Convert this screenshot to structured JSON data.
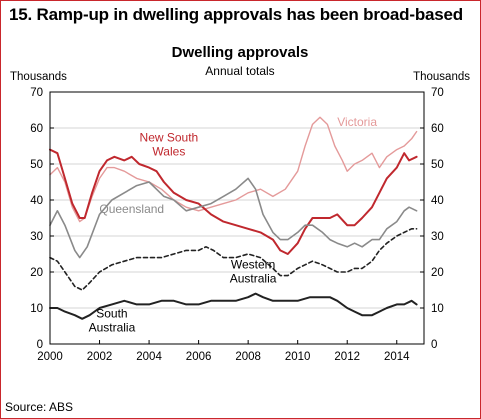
{
  "header": {
    "title": "15. Ramp-up in dwelling approvals has been broad-based"
  },
  "footer": {
    "source": "Source: ABS"
  },
  "chart_data": {
    "type": "line",
    "title": "Dwelling approvals",
    "subtitle": "Annual totals",
    "ylabel_left": "Thousands",
    "ylabel_right": "Thousands",
    "xlim": [
      2000,
      2015.1
    ],
    "ylim": [
      0,
      70
    ],
    "xticks": [
      "2000",
      "2002",
      "2004",
      "2006",
      "2008",
      "2010",
      "2012",
      "2014"
    ],
    "xtick_values": [
      2000,
      2002,
      2004,
      2006,
      2008,
      2010,
      2012,
      2014
    ],
    "yticks": [
      "0",
      "10",
      "20",
      "30",
      "40",
      "50",
      "60",
      "70"
    ],
    "ytick_values": [
      0,
      10,
      20,
      30,
      40,
      50,
      60,
      70
    ],
    "grid": true,
    "series": [
      {
        "name": "Victoria",
        "color": "#e49a9a",
        "dash": "none",
        "width": 1.4,
        "points": [
          [
            2000,
            47
          ],
          [
            2000.3,
            49
          ],
          [
            2000.6,
            45
          ],
          [
            2000.9,
            38
          ],
          [
            2001.2,
            34
          ],
          [
            2001.4,
            35
          ],
          [
            2001.7,
            41
          ],
          [
            2002,
            46
          ],
          [
            2002.3,
            49
          ],
          [
            2002.6,
            49
          ],
          [
            2003,
            48
          ],
          [
            2003.5,
            46
          ],
          [
            2004,
            45
          ],
          [
            2004.5,
            43
          ],
          [
            2005,
            40
          ],
          [
            2005.5,
            38
          ],
          [
            2006,
            37
          ],
          [
            2006.5,
            38
          ],
          [
            2007,
            39
          ],
          [
            2007.5,
            40
          ],
          [
            2008,
            42
          ],
          [
            2008.5,
            43
          ],
          [
            2009,
            41
          ],
          [
            2009.5,
            43
          ],
          [
            2010,
            48
          ],
          [
            2010.3,
            55
          ],
          [
            2010.6,
            61
          ],
          [
            2010.9,
            63
          ],
          [
            2011.2,
            61
          ],
          [
            2011.5,
            55
          ],
          [
            2011.8,
            51
          ],
          [
            2012,
            48
          ],
          [
            2012.3,
            50
          ],
          [
            2012.6,
            51
          ],
          [
            2013,
            53
          ],
          [
            2013.3,
            49
          ],
          [
            2013.6,
            52
          ],
          [
            2014,
            54
          ],
          [
            2014.3,
            55
          ],
          [
            2014.6,
            57
          ],
          [
            2014.8,
            59
          ]
        ],
        "label": {
          "text": "Victoria",
          "x": 2012.4,
          "y": 60.5
        }
      },
      {
        "name": "New South Wales",
        "color": "#c0282e",
        "dash": "none",
        "width": 2,
        "points": [
          [
            2000,
            54
          ],
          [
            2000.3,
            53
          ],
          [
            2000.6,
            46
          ],
          [
            2000.9,
            39
          ],
          [
            2001.2,
            35
          ],
          [
            2001.4,
            35
          ],
          [
            2001.7,
            42
          ],
          [
            2002,
            48
          ],
          [
            2002.3,
            51
          ],
          [
            2002.6,
            52
          ],
          [
            2003,
            51
          ],
          [
            2003.3,
            52
          ],
          [
            2003.6,
            50
          ],
          [
            2004,
            49
          ],
          [
            2004.3,
            48
          ],
          [
            2004.6,
            45
          ],
          [
            2005,
            42
          ],
          [
            2005.5,
            40
          ],
          [
            2006,
            39
          ],
          [
            2006.5,
            36
          ],
          [
            2007,
            34
          ],
          [
            2007.5,
            33
          ],
          [
            2008,
            32
          ],
          [
            2008.5,
            31
          ],
          [
            2009,
            29
          ],
          [
            2009.3,
            26
          ],
          [
            2009.6,
            25
          ],
          [
            2010,
            28
          ],
          [
            2010.3,
            32
          ],
          [
            2010.6,
            35
          ],
          [
            2011,
            35
          ],
          [
            2011.3,
            35
          ],
          [
            2011.6,
            36
          ],
          [
            2012,
            33
          ],
          [
            2012.3,
            33
          ],
          [
            2012.6,
            35
          ],
          [
            2013,
            38
          ],
          [
            2013.3,
            42
          ],
          [
            2013.6,
            46
          ],
          [
            2014,
            49
          ],
          [
            2014.3,
            53
          ],
          [
            2014.5,
            51
          ],
          [
            2014.8,
            52
          ]
        ],
        "label": {
          "text": "New South\nWales",
          "x": 2004.8,
          "y": 56.2
        }
      },
      {
        "name": "Queensland",
        "color": "#8a8a8a",
        "dash": "none",
        "width": 1.6,
        "points": [
          [
            2000,
            33
          ],
          [
            2000.3,
            37
          ],
          [
            2000.6,
            33
          ],
          [
            2001,
            26
          ],
          [
            2001.2,
            24
          ],
          [
            2001.5,
            27
          ],
          [
            2002,
            36
          ],
          [
            2002.5,
            40
          ],
          [
            2003,
            42
          ],
          [
            2003.5,
            44
          ],
          [
            2004,
            45
          ],
          [
            2004.3,
            43
          ],
          [
            2004.6,
            41
          ],
          [
            2005,
            40
          ],
          [
            2005.5,
            37
          ],
          [
            2006,
            38
          ],
          [
            2006.5,
            39
          ],
          [
            2007,
            41
          ],
          [
            2007.5,
            43
          ],
          [
            2008,
            46
          ],
          [
            2008.3,
            43
          ],
          [
            2008.6,
            36
          ],
          [
            2009,
            31
          ],
          [
            2009.3,
            29
          ],
          [
            2009.6,
            29
          ],
          [
            2010,
            31
          ],
          [
            2010.3,
            33
          ],
          [
            2010.6,
            33
          ],
          [
            2011,
            31
          ],
          [
            2011.3,
            29
          ],
          [
            2011.6,
            28
          ],
          [
            2012,
            27
          ],
          [
            2012.3,
            28
          ],
          [
            2012.6,
            27
          ],
          [
            2013,
            29
          ],
          [
            2013.3,
            29
          ],
          [
            2013.6,
            32
          ],
          [
            2014,
            34
          ],
          [
            2014.3,
            37
          ],
          [
            2014.5,
            38
          ],
          [
            2014.8,
            37
          ]
        ],
        "label": {
          "text": "Queensland",
          "x": 2003.3,
          "y": 36.4
        }
      },
      {
        "name": "Western Australia",
        "color": "#222222",
        "dash": "4,3",
        "width": 1.6,
        "points": [
          [
            2000,
            24
          ],
          [
            2000.3,
            23
          ],
          [
            2000.6,
            20
          ],
          [
            2001,
            16
          ],
          [
            2001.3,
            15
          ],
          [
            2001.6,
            17
          ],
          [
            2002,
            20
          ],
          [
            2002.5,
            22
          ],
          [
            2003,
            23
          ],
          [
            2003.5,
            24
          ],
          [
            2004,
            24
          ],
          [
            2004.5,
            24
          ],
          [
            2005,
            25
          ],
          [
            2005.5,
            26
          ],
          [
            2006,
            26
          ],
          [
            2006.3,
            27
          ],
          [
            2006.6,
            26
          ],
          [
            2007,
            24
          ],
          [
            2007.5,
            24
          ],
          [
            2008,
            25
          ],
          [
            2008.5,
            24
          ],
          [
            2009,
            21
          ],
          [
            2009.3,
            19
          ],
          [
            2009.6,
            19
          ],
          [
            2010,
            21
          ],
          [
            2010.3,
            22
          ],
          [
            2010.6,
            23
          ],
          [
            2011,
            22
          ],
          [
            2011.3,
            21
          ],
          [
            2011.6,
            20
          ],
          [
            2012,
            20
          ],
          [
            2012.3,
            21
          ],
          [
            2012.6,
            21
          ],
          [
            2013,
            23
          ],
          [
            2013.3,
            26
          ],
          [
            2013.6,
            28
          ],
          [
            2014,
            30
          ],
          [
            2014.3,
            31
          ],
          [
            2014.6,
            32
          ],
          [
            2014.8,
            32
          ]
        ],
        "label": {
          "text": "Western\nAustralia",
          "x": 2008.2,
          "y": 21
        }
      },
      {
        "name": "South Australia",
        "color": "#222222",
        "dash": "none",
        "width": 2,
        "points": [
          [
            2000,
            10
          ],
          [
            2000.3,
            10
          ],
          [
            2000.6,
            9
          ],
          [
            2001,
            8
          ],
          [
            2001.3,
            7
          ],
          [
            2001.6,
            8
          ],
          [
            2002,
            10
          ],
          [
            2002.5,
            11
          ],
          [
            2003,
            12
          ],
          [
            2003.5,
            11
          ],
          [
            2004,
            11
          ],
          [
            2004.5,
            12
          ],
          [
            2005,
            12
          ],
          [
            2005.5,
            11
          ],
          [
            2006,
            11
          ],
          [
            2006.5,
            12
          ],
          [
            2007,
            12
          ],
          [
            2007.5,
            12
          ],
          [
            2008,
            13
          ],
          [
            2008.3,
            14
          ],
          [
            2008.6,
            13
          ],
          [
            2009,
            12
          ],
          [
            2009.5,
            12
          ],
          [
            2010,
            12
          ],
          [
            2010.5,
            13
          ],
          [
            2011,
            13
          ],
          [
            2011.3,
            13
          ],
          [
            2011.6,
            12
          ],
          [
            2012,
            10
          ],
          [
            2012.3,
            9
          ],
          [
            2012.6,
            8
          ],
          [
            2013,
            8
          ],
          [
            2013.3,
            9
          ],
          [
            2013.6,
            10
          ],
          [
            2014,
            11
          ],
          [
            2014.3,
            11
          ],
          [
            2014.6,
            12
          ],
          [
            2014.8,
            11
          ]
        ],
        "label": {
          "text": "South\nAustralia",
          "x": 2002.5,
          "y": 7.3
        }
      }
    ]
  }
}
